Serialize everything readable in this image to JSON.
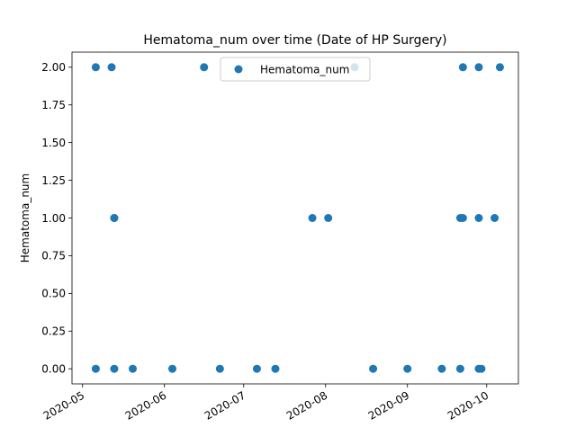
{
  "chart_data": {
    "type": "scatter",
    "title": "Hematoma_num over time (Date of HP Surgery)",
    "xlabel": "",
    "ylabel": "Hematoma_num",
    "legend": {
      "position": "top-center",
      "entries": [
        "Hematoma_num"
      ]
    },
    "grid": false,
    "xlim": [
      "2020-04-27",
      "2020-10-13"
    ],
    "ylim": [
      -0.1,
      2.1
    ],
    "x_ticks": [
      "2020-05",
      "2020-06",
      "2020-07",
      "2020-08",
      "2020-09",
      "2020-10"
    ],
    "y_ticks": [
      "0.00",
      "0.25",
      "0.50",
      "0.75",
      "1.00",
      "1.25",
      "1.50",
      "1.75",
      "2.00"
    ],
    "colors": {
      "series": "#1f77b4"
    },
    "series": [
      {
        "name": "Hematoma_num",
        "points": [
          {
            "x": "2020-05-06",
            "y": 2
          },
          {
            "x": "2020-05-12",
            "y": 2
          },
          {
            "x": "2020-06-16",
            "y": 2
          },
          {
            "x": "2020-08-12",
            "y": 2
          },
          {
            "x": "2020-09-22",
            "y": 2
          },
          {
            "x": "2020-09-28",
            "y": 2
          },
          {
            "x": "2020-10-06",
            "y": 2
          },
          {
            "x": "2020-05-13",
            "y": 1
          },
          {
            "x": "2020-05-13",
            "y": 1
          },
          {
            "x": "2020-07-27",
            "y": 1
          },
          {
            "x": "2020-08-02",
            "y": 1
          },
          {
            "x": "2020-09-21",
            "y": 1
          },
          {
            "x": "2020-09-22",
            "y": 1
          },
          {
            "x": "2020-09-28",
            "y": 1
          },
          {
            "x": "2020-10-04",
            "y": 1
          },
          {
            "x": "2020-05-06",
            "y": 0
          },
          {
            "x": "2020-05-13",
            "y": 0
          },
          {
            "x": "2020-05-20",
            "y": 0
          },
          {
            "x": "2020-06-04",
            "y": 0
          },
          {
            "x": "2020-06-22",
            "y": 0
          },
          {
            "x": "2020-07-06",
            "y": 0
          },
          {
            "x": "2020-07-13",
            "y": 0
          },
          {
            "x": "2020-08-19",
            "y": 0
          },
          {
            "x": "2020-09-01",
            "y": 0
          },
          {
            "x": "2020-09-14",
            "y": 0
          },
          {
            "x": "2020-09-21",
            "y": 0
          },
          {
            "x": "2020-09-28",
            "y": 0
          },
          {
            "x": "2020-09-29",
            "y": 0
          }
        ]
      }
    ]
  }
}
